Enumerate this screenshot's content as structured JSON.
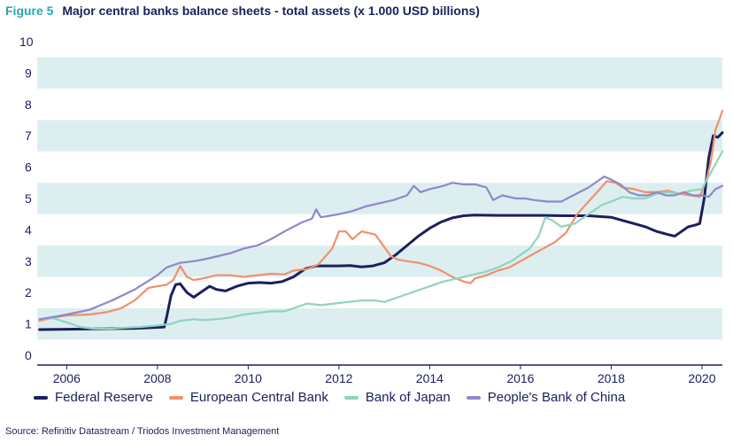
{
  "figure": {
    "label": "Figure 5",
    "title": "Major central banks balance sheets - total assets (x 1.000 USD billions)",
    "source": "Source: Refinitiv Datastream / Triodos Investment Management"
  },
  "colors": {
    "band": "#ddeef0",
    "axis": "#1b1f5e"
  },
  "chart_data": {
    "type": "line",
    "title": "Major central banks balance sheets - total assets (x 1.000 USD billions)",
    "xlim": [
      2005.35,
      2020.45
    ],
    "ylim": [
      0,
      10
    ],
    "x_ticks": [
      2006,
      2008,
      2010,
      2012,
      2014,
      2016,
      2018,
      2020
    ],
    "y_ticks": [
      0,
      1,
      2,
      3,
      4,
      5,
      6,
      7,
      8,
      9,
      10
    ],
    "grid": "alternating horizontal bands",
    "legend_position": "bottom",
    "series": [
      {
        "name": "Federal Reserve",
        "color": "#1b1f5e",
        "points": [
          [
            2005.4,
            0.82
          ],
          [
            2006.0,
            0.83
          ],
          [
            2006.5,
            0.84
          ],
          [
            2007.0,
            0.85
          ],
          [
            2007.5,
            0.86
          ],
          [
            2008.0,
            0.89
          ],
          [
            2008.15,
            0.9
          ],
          [
            2008.2,
            1.2
          ],
          [
            2008.3,
            1.9
          ],
          [
            2008.4,
            2.25
          ],
          [
            2008.5,
            2.28
          ],
          [
            2008.65,
            2.0
          ],
          [
            2008.8,
            1.85
          ],
          [
            2009.0,
            2.05
          ],
          [
            2009.15,
            2.2
          ],
          [
            2009.3,
            2.1
          ],
          [
            2009.5,
            2.05
          ],
          [
            2009.75,
            2.2
          ],
          [
            2010.0,
            2.3
          ],
          [
            2010.25,
            2.32
          ],
          [
            2010.5,
            2.3
          ],
          [
            2010.75,
            2.35
          ],
          [
            2011.0,
            2.5
          ],
          [
            2011.25,
            2.75
          ],
          [
            2011.5,
            2.85
          ],
          [
            2011.75,
            2.85
          ],
          [
            2012.0,
            2.85
          ],
          [
            2012.25,
            2.86
          ],
          [
            2012.5,
            2.82
          ],
          [
            2012.75,
            2.85
          ],
          [
            2013.0,
            2.95
          ],
          [
            2013.25,
            3.2
          ],
          [
            2013.5,
            3.5
          ],
          [
            2013.75,
            3.8
          ],
          [
            2014.0,
            4.05
          ],
          [
            2014.25,
            4.25
          ],
          [
            2014.5,
            4.38
          ],
          [
            2014.75,
            4.45
          ],
          [
            2015.0,
            4.47
          ],
          [
            2015.5,
            4.46
          ],
          [
            2016.0,
            4.46
          ],
          [
            2016.5,
            4.46
          ],
          [
            2017.0,
            4.45
          ],
          [
            2017.5,
            4.45
          ],
          [
            2018.0,
            4.4
          ],
          [
            2018.25,
            4.3
          ],
          [
            2018.5,
            4.2
          ],
          [
            2018.75,
            4.1
          ],
          [
            2019.0,
            3.95
          ],
          [
            2019.25,
            3.85
          ],
          [
            2019.4,
            3.8
          ],
          [
            2019.55,
            3.95
          ],
          [
            2019.7,
            4.1
          ],
          [
            2019.85,
            4.15
          ],
          [
            2019.95,
            4.2
          ],
          [
            2020.05,
            5.0
          ],
          [
            2020.15,
            6.3
          ],
          [
            2020.25,
            7.0
          ],
          [
            2020.35,
            6.95
          ],
          [
            2020.45,
            7.1
          ]
        ]
      },
      {
        "name": "European Central Bank",
        "color": "#f0906a",
        "points": [
          [
            2005.4,
            1.1
          ],
          [
            2005.7,
            1.2
          ],
          [
            2006.0,
            1.27
          ],
          [
            2006.5,
            1.3
          ],
          [
            2006.9,
            1.38
          ],
          [
            2007.2,
            1.5
          ],
          [
            2007.5,
            1.75
          ],
          [
            2007.8,
            2.15
          ],
          [
            2008.0,
            2.2
          ],
          [
            2008.2,
            2.25
          ],
          [
            2008.35,
            2.4
          ],
          [
            2008.5,
            2.85
          ],
          [
            2008.65,
            2.5
          ],
          [
            2008.8,
            2.4
          ],
          [
            2009.0,
            2.45
          ],
          [
            2009.3,
            2.55
          ],
          [
            2009.6,
            2.55
          ],
          [
            2009.9,
            2.5
          ],
          [
            2010.2,
            2.55
          ],
          [
            2010.5,
            2.6
          ],
          [
            2010.8,
            2.58
          ],
          [
            2011.0,
            2.7
          ],
          [
            2011.3,
            2.75
          ],
          [
            2011.55,
            2.9
          ],
          [
            2011.7,
            3.15
          ],
          [
            2011.85,
            3.4
          ],
          [
            2012.0,
            3.95
          ],
          [
            2012.15,
            3.95
          ],
          [
            2012.3,
            3.7
          ],
          [
            2012.5,
            3.95
          ],
          [
            2012.65,
            3.9
          ],
          [
            2012.8,
            3.85
          ],
          [
            2013.0,
            3.45
          ],
          [
            2013.15,
            3.15
          ],
          [
            2013.3,
            3.05
          ],
          [
            2013.5,
            3.0
          ],
          [
            2013.75,
            2.95
          ],
          [
            2014.0,
            2.85
          ],
          [
            2014.25,
            2.7
          ],
          [
            2014.5,
            2.5
          ],
          [
            2014.75,
            2.35
          ],
          [
            2014.9,
            2.3
          ],
          [
            2015.0,
            2.45
          ],
          [
            2015.25,
            2.55
          ],
          [
            2015.5,
            2.7
          ],
          [
            2015.75,
            2.8
          ],
          [
            2016.0,
            3.0
          ],
          [
            2016.25,
            3.2
          ],
          [
            2016.5,
            3.4
          ],
          [
            2016.75,
            3.6
          ],
          [
            2017.0,
            3.9
          ],
          [
            2017.25,
            4.5
          ],
          [
            2017.5,
            4.9
          ],
          [
            2017.75,
            5.3
          ],
          [
            2017.9,
            5.55
          ],
          [
            2018.1,
            5.5
          ],
          [
            2018.25,
            5.35
          ],
          [
            2018.5,
            5.3
          ],
          [
            2018.75,
            5.2
          ],
          [
            2019.0,
            5.2
          ],
          [
            2019.25,
            5.25
          ],
          [
            2019.5,
            5.15
          ],
          [
            2019.75,
            5.1
          ],
          [
            2019.95,
            5.05
          ],
          [
            2020.1,
            5.6
          ],
          [
            2020.2,
            6.2
          ],
          [
            2020.3,
            7.2
          ],
          [
            2020.38,
            7.5
          ],
          [
            2020.45,
            7.8
          ]
        ]
      },
      {
        "name": "Bank of Japan",
        "color": "#8fd4bd",
        "points": [
          [
            2005.4,
            1.15
          ],
          [
            2005.7,
            1.18
          ],
          [
            2006.0,
            1.05
          ],
          [
            2006.3,
            0.9
          ],
          [
            2006.6,
            0.85
          ],
          [
            2007.0,
            0.85
          ],
          [
            2007.3,
            0.88
          ],
          [
            2007.6,
            0.9
          ],
          [
            2008.0,
            0.95
          ],
          [
            2008.3,
            1.0
          ],
          [
            2008.5,
            1.1
          ],
          [
            2008.8,
            1.15
          ],
          [
            2009.0,
            1.12
          ],
          [
            2009.3,
            1.15
          ],
          [
            2009.6,
            1.2
          ],
          [
            2009.9,
            1.3
          ],
          [
            2010.2,
            1.35
          ],
          [
            2010.5,
            1.4
          ],
          [
            2010.8,
            1.4
          ],
          [
            2011.0,
            1.5
          ],
          [
            2011.3,
            1.65
          ],
          [
            2011.6,
            1.6
          ],
          [
            2011.9,
            1.65
          ],
          [
            2012.2,
            1.7
          ],
          [
            2012.5,
            1.75
          ],
          [
            2012.8,
            1.75
          ],
          [
            2013.0,
            1.7
          ],
          [
            2013.2,
            1.8
          ],
          [
            2013.5,
            1.95
          ],
          [
            2013.8,
            2.1
          ],
          [
            2014.0,
            2.2
          ],
          [
            2014.3,
            2.35
          ],
          [
            2014.6,
            2.45
          ],
          [
            2014.9,
            2.55
          ],
          [
            2015.2,
            2.65
          ],
          [
            2015.5,
            2.8
          ],
          [
            2015.8,
            3.0
          ],
          [
            2016.0,
            3.2
          ],
          [
            2016.2,
            3.4
          ],
          [
            2016.4,
            3.8
          ],
          [
            2016.55,
            4.4
          ],
          [
            2016.7,
            4.3
          ],
          [
            2016.9,
            4.1
          ],
          [
            2017.2,
            4.2
          ],
          [
            2017.5,
            4.5
          ],
          [
            2017.8,
            4.8
          ],
          [
            2018.0,
            4.9
          ],
          [
            2018.25,
            5.05
          ],
          [
            2018.5,
            5.0
          ],
          [
            2018.75,
            5.0
          ],
          [
            2019.0,
            5.15
          ],
          [
            2019.25,
            5.2
          ],
          [
            2019.5,
            5.15
          ],
          [
            2019.75,
            5.25
          ],
          [
            2020.0,
            5.3
          ],
          [
            2020.15,
            5.7
          ],
          [
            2020.3,
            6.1
          ],
          [
            2020.45,
            6.5
          ]
        ]
      },
      {
        "name": "People's Bank of China",
        "color": "#8f88c8",
        "points": [
          [
            2005.4,
            1.15
          ],
          [
            2005.7,
            1.22
          ],
          [
            2006.0,
            1.3
          ],
          [
            2006.5,
            1.45
          ],
          [
            2007.0,
            1.75
          ],
          [
            2007.5,
            2.1
          ],
          [
            2008.0,
            2.55
          ],
          [
            2008.2,
            2.8
          ],
          [
            2008.5,
            2.95
          ],
          [
            2008.8,
            3.0
          ],
          [
            2009.0,
            3.05
          ],
          [
            2009.3,
            3.15
          ],
          [
            2009.6,
            3.25
          ],
          [
            2009.9,
            3.4
          ],
          [
            2010.2,
            3.5
          ],
          [
            2010.5,
            3.7
          ],
          [
            2010.8,
            3.95
          ],
          [
            2011.0,
            4.1
          ],
          [
            2011.2,
            4.25
          ],
          [
            2011.4,
            4.35
          ],
          [
            2011.5,
            4.65
          ],
          [
            2011.6,
            4.4
          ],
          [
            2011.8,
            4.45
          ],
          [
            2012.0,
            4.5
          ],
          [
            2012.3,
            4.6
          ],
          [
            2012.6,
            4.75
          ],
          [
            2012.9,
            4.85
          ],
          [
            2013.2,
            4.95
          ],
          [
            2013.5,
            5.1
          ],
          [
            2013.65,
            5.4
          ],
          [
            2013.8,
            5.2
          ],
          [
            2014.0,
            5.3
          ],
          [
            2014.3,
            5.4
          ],
          [
            2014.5,
            5.5
          ],
          [
            2014.75,
            5.45
          ],
          [
            2015.0,
            5.45
          ],
          [
            2015.25,
            5.35
          ],
          [
            2015.4,
            4.95
          ],
          [
            2015.6,
            5.1
          ],
          [
            2015.9,
            5.0
          ],
          [
            2016.1,
            5.0
          ],
          [
            2016.3,
            4.95
          ],
          [
            2016.6,
            4.9
          ],
          [
            2016.9,
            4.9
          ],
          [
            2017.1,
            5.05
          ],
          [
            2017.3,
            5.2
          ],
          [
            2017.5,
            5.35
          ],
          [
            2017.7,
            5.55
          ],
          [
            2017.85,
            5.7
          ],
          [
            2018.0,
            5.6
          ],
          [
            2018.2,
            5.45
          ],
          [
            2018.4,
            5.2
          ],
          [
            2018.6,
            5.1
          ],
          [
            2018.8,
            5.1
          ],
          [
            2019.0,
            5.2
          ],
          [
            2019.2,
            5.1
          ],
          [
            2019.4,
            5.1
          ],
          [
            2019.6,
            5.2
          ],
          [
            2019.8,
            5.1
          ],
          [
            2020.0,
            5.1
          ],
          [
            2020.15,
            5.05
          ],
          [
            2020.3,
            5.3
          ],
          [
            2020.45,
            5.4
          ]
        ]
      }
    ]
  }
}
